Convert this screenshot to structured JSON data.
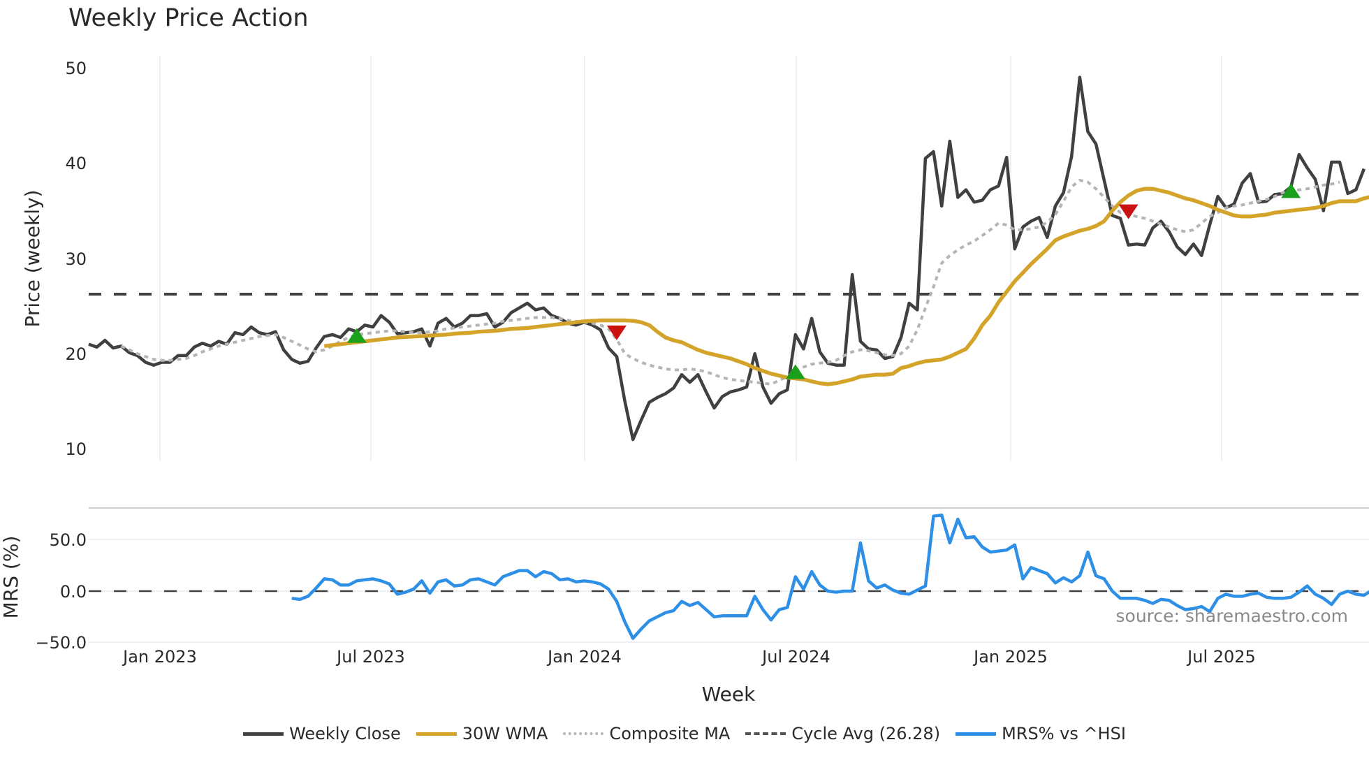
{
  "title": "Weekly Price Action",
  "chart_data": [
    {
      "type": "line",
      "panel": "price",
      "title": "Weekly Price Action",
      "xlabel": "Week",
      "ylabel": "Price (weekly)",
      "ylim": [
        8.5,
        51.5
      ],
      "yticks": [
        10,
        20,
        30,
        40,
        50
      ],
      "grid": true,
      "x_tick_labels": [
        "Jan 2023",
        "Jul 2023",
        "Jan 2024",
        "Jul 2024",
        "Jan 2025",
        "Jul 2025"
      ],
      "x_range": [
        "2022-11 (approx)",
        "2025-10 (approx)"
      ],
      "series": [
        {
          "name": "Weekly Close",
          "color": "#404040",
          "start_index": 0,
          "values": [
            21.0,
            20.7,
            21.4,
            20.6,
            20.8,
            20.1,
            19.8,
            19.1,
            18.8,
            19.1,
            19.1,
            19.8,
            19.8,
            20.7,
            21.1,
            20.8,
            21.3,
            21.0,
            22.2,
            22.0,
            22.8,
            22.2,
            22.0,
            22.3,
            20.4,
            19.4,
            19.0,
            19.2,
            20.6,
            21.8,
            22.0,
            21.7,
            22.6,
            22.3,
            23.0,
            22.8,
            24.0,
            23.3,
            22.1,
            22.2,
            22.3,
            22.6,
            20.8,
            23.2,
            23.7,
            22.8,
            23.2,
            24.0,
            24.0,
            24.2,
            22.8,
            23.3,
            24.3,
            24.8,
            25.3,
            24.6,
            24.8,
            24.0,
            23.7,
            23.2,
            23.0,
            23.3,
            23.0,
            22.5,
            20.6,
            19.7,
            15.0,
            11.0,
            13.0,
            14.9,
            15.4,
            15.8,
            16.4,
            17.8,
            17.0,
            17.8,
            16.0,
            14.3,
            15.5,
            16.0,
            16.2,
            16.5,
            20.0,
            16.5,
            14.8,
            15.8,
            16.2,
            22.0,
            20.5,
            23.7,
            20.2,
            19.0,
            18.8,
            18.8,
            28.3,
            21.3,
            20.5,
            20.4,
            19.5,
            19.7,
            21.7,
            25.3,
            24.6,
            40.5,
            41.2,
            35.5,
            42.3,
            36.4,
            37.2,
            35.9,
            36.1,
            37.2,
            37.6,
            40.6,
            31.0,
            33.3,
            33.9,
            34.3,
            32.2,
            35.5,
            36.9,
            40.7,
            49.0,
            43.3,
            42.0,
            38.2,
            34.5,
            34.2,
            31.4,
            31.5,
            31.4,
            33.2,
            33.9,
            32.8,
            31.2,
            30.4,
            31.5,
            30.3,
            33.5,
            36.5,
            35.3,
            35.7,
            37.9,
            38.9,
            35.9,
            36.0,
            36.7,
            36.8,
            37.5,
            40.9,
            39.5,
            38.3,
            35.0,
            40.1,
            40.1,
            36.8,
            37.2,
            39.4
          ]
        },
        {
          "name": "30W WMA",
          "color": "#d4a42a",
          "start_index": 29,
          "values": [
            20.8,
            20.9,
            21.0,
            21.1,
            21.2,
            21.3,
            21.4,
            21.5,
            21.6,
            21.7,
            21.75,
            21.8,
            21.85,
            21.9,
            21.95,
            22.0,
            22.1,
            22.15,
            22.2,
            22.3,
            22.35,
            22.4,
            22.5,
            22.6,
            22.65,
            22.7,
            22.8,
            22.9,
            23.0,
            23.1,
            23.2,
            23.3,
            23.4,
            23.45,
            23.5,
            23.5,
            23.5,
            23.5,
            23.45,
            23.3,
            23.0,
            22.3,
            21.7,
            21.4,
            21.2,
            20.8,
            20.4,
            20.1,
            19.9,
            19.7,
            19.5,
            19.2,
            18.9,
            18.5,
            18.2,
            17.9,
            17.7,
            17.5,
            17.4,
            17.3,
            17.1,
            16.9,
            16.8,
            16.9,
            17.1,
            17.3,
            17.6,
            17.7,
            17.8,
            17.8,
            17.9,
            18.5,
            18.7,
            19.0,
            19.2,
            19.3,
            19.4,
            19.7,
            20.1,
            20.5,
            21.6,
            23.0,
            24.0,
            25.4,
            26.5,
            27.6,
            28.5,
            29.4,
            30.2,
            31.0,
            31.9,
            32.3,
            32.6,
            32.9,
            33.1,
            33.4,
            33.9,
            35.0,
            35.9,
            36.6,
            37.1,
            37.3,
            37.3,
            37.1,
            36.9,
            36.6,
            36.3,
            36.1,
            35.8,
            35.5,
            35.1,
            34.8,
            34.5,
            34.4,
            34.4,
            34.5,
            34.6,
            34.8,
            34.9,
            35.0,
            35.1,
            35.2,
            35.3,
            35.5,
            35.8,
            36.0,
            36.0,
            36.0,
            36.3,
            36.5,
            36.7,
            36.9
          ]
        },
        {
          "name": "Composite MA",
          "color": "#b5b5b5",
          "start_index": 4,
          "values": [
            20.8,
            20.4,
            20.0,
            19.7,
            19.4,
            19.3,
            19.3,
            19.4,
            19.5,
            19.8,
            20.2,
            20.5,
            20.8,
            21.0,
            21.2,
            21.4,
            21.6,
            21.8,
            21.9,
            22.0,
            21.7,
            21.3,
            20.9,
            20.5,
            20.2,
            20.4,
            20.8,
            21.3,
            21.7,
            22.0,
            22.1,
            22.2,
            22.3,
            22.4,
            22.4,
            22.3,
            22.2,
            22.2,
            22.3,
            22.4,
            22.6,
            22.7,
            22.8,
            22.9,
            23.0,
            23.1,
            23.2,
            23.4,
            23.5,
            23.6,
            23.7,
            23.8,
            23.8,
            23.8,
            23.7,
            23.5,
            23.4,
            23.3,
            23.2,
            23.0,
            22.6,
            21.5,
            20.0,
            19.5,
            19.1,
            18.8,
            18.6,
            18.4,
            18.3,
            18.3,
            18.4,
            18.3,
            18.1,
            17.8,
            17.5,
            17.3,
            17.2,
            17.1,
            17.0,
            16.9,
            16.8,
            17.2,
            17.6,
            18.2,
            18.6,
            18.9,
            19.0,
            19.1,
            19.3,
            19.8,
            20.2,
            20.4,
            20.3,
            20.1,
            19.9,
            19.8,
            20.0,
            20.8,
            22.5,
            24.8,
            27.0,
            29.5,
            30.3,
            30.9,
            31.4,
            31.8,
            32.4,
            33.0,
            33.7,
            33.5,
            33.0,
            33.0,
            33.1,
            33.3,
            33.8,
            34.6,
            36.0,
            37.5,
            38.2,
            38.0,
            37.3,
            36.4,
            35.5,
            34.8,
            34.6,
            34.4,
            34.2,
            33.9,
            33.6,
            33.3,
            33.0,
            32.8,
            33.0,
            33.7,
            34.4,
            34.8,
            35.3,
            35.5,
            35.6,
            35.8,
            36.0,
            36.2,
            36.5,
            36.9,
            37.0,
            37.2,
            37.3,
            37.5,
            37.7,
            37.8,
            38.0
          ]
        },
        {
          "name": "Cycle Avg (26.28)",
          "color": "#404040",
          "style": "dashed",
          "constant": 26.28
        }
      ],
      "annotations": [
        {
          "type": "buy-signal",
          "shape": "triangle-up",
          "color": "#1aa01a",
          "index": 33,
          "value": 21.8
        },
        {
          "type": "sell-signal",
          "shape": "triangle-down",
          "color": "#cc1111",
          "index": 65,
          "value": 22.3
        },
        {
          "type": "buy-signal",
          "shape": "triangle-up",
          "color": "#1aa01a",
          "index": 87,
          "value": 18.0
        },
        {
          "type": "sell-signal",
          "shape": "triangle-down",
          "color": "#cc1111",
          "index": 128,
          "value": 35.0
        },
        {
          "type": "buy-signal",
          "shape": "triangle-up",
          "color": "#1aa01a",
          "index": 148,
          "value": 37.0
        }
      ],
      "watermark": "source: sharemaestro.com"
    },
    {
      "type": "line",
      "panel": "mrs",
      "xlabel": "Week",
      "ylabel": "MRS (%)",
      "ylim": [
        -50,
        78
      ],
      "yticks": [
        50.0,
        0.0,
        -50.0
      ],
      "ytick_labels": [
        "50.0",
        "0.0",
        "−50.0"
      ],
      "series": [
        {
          "name": "MRS% vs ^HSI",
          "color": "#2e8fe6",
          "start_index": 25,
          "values": [
            -7,
            -8,
            -5,
            3,
            12,
            11,
            6,
            6,
            10,
            11,
            12,
            10,
            7,
            -3,
            -1,
            2,
            10,
            -2,
            9,
            11,
            5,
            6,
            11,
            12,
            9,
            6,
            14,
            17,
            20,
            20,
            14,
            19,
            17,
            11,
            12,
            9,
            10,
            9,
            7,
            2,
            -10,
            -30,
            -46,
            -37,
            -29,
            -25,
            -21,
            -19,
            -10,
            -14,
            -11,
            -18,
            -25,
            -24,
            -24,
            -24,
            -24,
            -5,
            -18,
            -28,
            -18,
            -16,
            14,
            2,
            19,
            6,
            0,
            -1,
            0,
            0,
            47,
            10,
            3,
            6,
            1,
            -2,
            -3,
            1,
            5,
            73,
            74,
            47,
            70,
            52,
            53,
            43,
            38,
            39,
            40,
            45,
            12,
            23,
            20,
            17,
            8,
            13,
            9,
            15,
            38,
            15,
            12,
            0,
            -7,
            -7,
            -7,
            -9,
            -12,
            -8,
            -9,
            -14,
            -18,
            -17,
            -15,
            -20,
            -7,
            -3,
            -5,
            -5,
            -3,
            -2,
            -6,
            -7,
            -7,
            -6,
            -1,
            5,
            -3,
            -7,
            -13,
            -3,
            0,
            -3,
            -4,
            1
          ]
        },
        {
          "name": "zero line",
          "color": "#404040",
          "style": "dashed",
          "constant": 0
        }
      ]
    }
  ],
  "axes": {
    "price_ylabel": "Price (weekly)",
    "mrs_ylabel": "MRS (%)",
    "xlabel": "Week",
    "price_ticks": [
      "50",
      "40",
      "30",
      "20",
      "10"
    ],
    "mrs_ticks": [
      "50.0",
      "0.0",
      "−50.0"
    ],
    "x_ticks": [
      "Jan 2023",
      "Jul 2023",
      "Jan 2024",
      "Jul 2024",
      "Jan 2025",
      "Jul 2025"
    ]
  },
  "watermark": "source: sharemaestro.com",
  "legend": [
    {
      "label": "Weekly Close",
      "color": "#404040",
      "style": "solid"
    },
    {
      "label": "30W WMA",
      "color": "#d4a42a",
      "style": "solid"
    },
    {
      "label": "Composite MA",
      "color": "#b5b5b5",
      "style": "dotted"
    },
    {
      "label": "Cycle Avg (26.28)",
      "color": "#404040",
      "style": "dashed"
    },
    {
      "label": "MRS% vs ^HSI",
      "color": "#2e8fe6",
      "style": "solid"
    }
  ]
}
